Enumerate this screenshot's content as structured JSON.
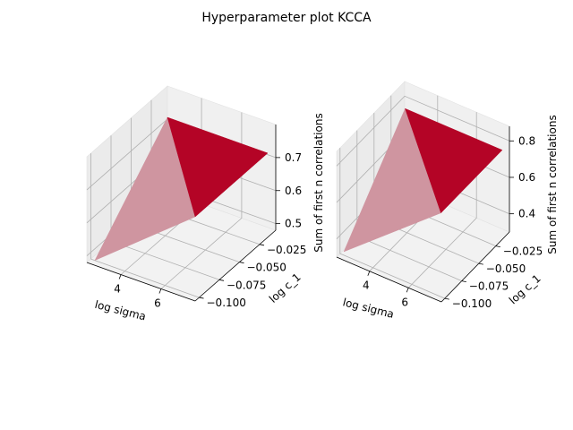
{
  "figure": {
    "suptitle": "Hyperparameter plot KCCA"
  },
  "chart_data": [
    {
      "type": "surface",
      "title": "",
      "xlabel": "log sigma",
      "ylabel": "log c_1",
      "zlabel": "Sum of first n correlations",
      "xlim": [
        2.3,
        7.7
      ],
      "ylim": [
        -0.105,
        -0.005
      ],
      "zlim": [
        0.48,
        0.8
      ],
      "xticks": [
        {
          "v": 4,
          "label": "4"
        },
        {
          "v": 6,
          "label": "6"
        }
      ],
      "yticks": [
        {
          "v": -0.1,
          "label": "−0.100"
        },
        {
          "v": -0.075,
          "label": "−0.075"
        },
        {
          "v": -0.05,
          "label": "−0.050"
        },
        {
          "v": -0.025,
          "label": "−0.025"
        }
      ],
      "zticks": [
        {
          "v": 0.5,
          "label": "0.5"
        },
        {
          "v": 0.6,
          "label": "0.6"
        },
        {
          "v": 0.7,
          "label": "0.7"
        }
      ],
      "x": [
        2.5,
        7.5
      ],
      "y": [
        -0.1,
        -0.01
      ],
      "z": [
        [
          0.48,
          0.72
        ],
        [
          0.72,
          0.72
        ]
      ],
      "colormap": "coolwarm",
      "colors": {
        "low": "#3b4cc0",
        "mid": "#dddddd",
        "high": "#b40426"
      }
    },
    {
      "type": "surface",
      "title": "",
      "xlabel": "log sigma",
      "ylabel": "log c_1",
      "zlabel": "Sum of first n correlations",
      "xlim": [
        2.3,
        7.7
      ],
      "ylim": [
        -0.105,
        -0.005
      ],
      "zlim": [
        0.3,
        0.88
      ],
      "xticks": [
        {
          "v": 4,
          "label": "4"
        },
        {
          "v": 6,
          "label": "6"
        }
      ],
      "yticks": [
        {
          "v": -0.1,
          "label": "−0.100"
        },
        {
          "v": -0.075,
          "label": "−0.075"
        },
        {
          "v": -0.05,
          "label": "−0.050"
        },
        {
          "v": -0.025,
          "label": "−0.025"
        }
      ],
      "zticks": [
        {
          "v": 0.4,
          "label": "0.4"
        },
        {
          "v": 0.6,
          "label": "0.6"
        },
        {
          "v": 0.8,
          "label": "0.8"
        }
      ],
      "x": [
        2.5,
        7.5
      ],
      "y": [
        -0.1,
        -0.01
      ],
      "z": [
        [
          0.32,
          0.76
        ],
        [
          0.76,
          0.76
        ]
      ],
      "colormap": "coolwarm",
      "colors": {
        "low": "#3b4cc0",
        "mid": "#dddddd",
        "high": "#b40426"
      }
    }
  ]
}
